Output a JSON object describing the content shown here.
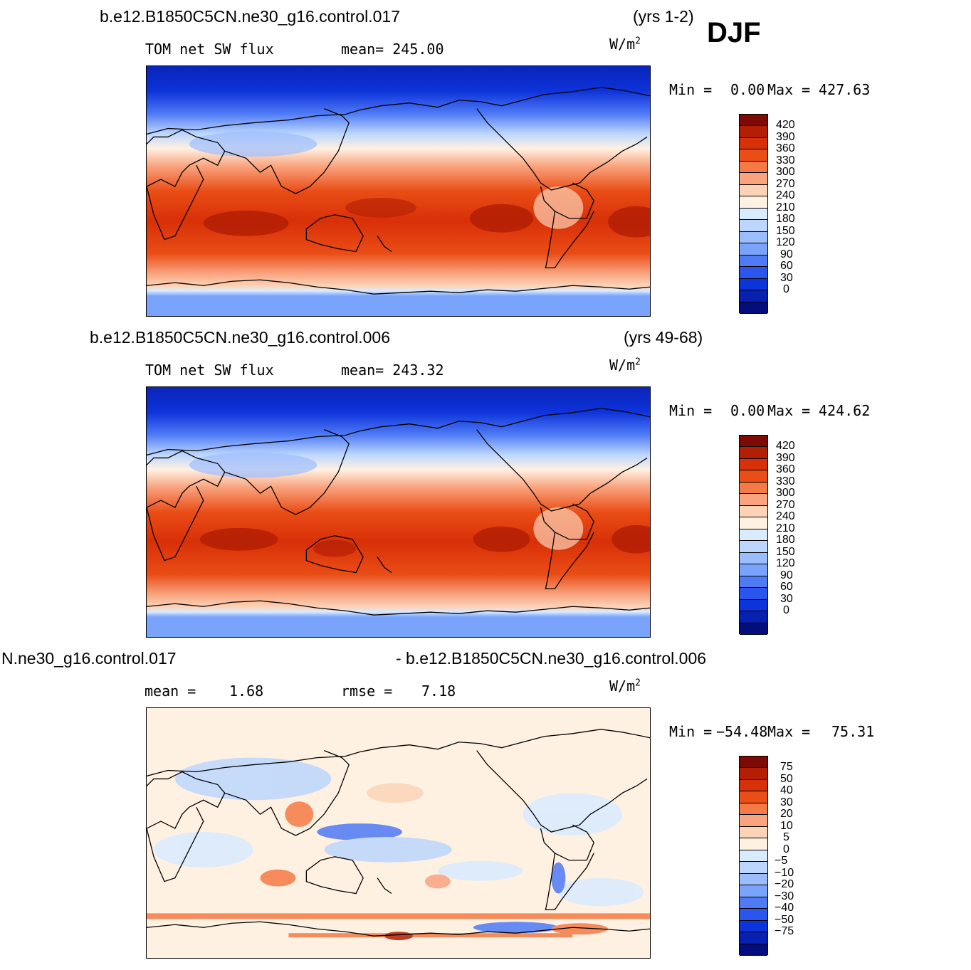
{
  "season": "DJF",
  "panels": [
    {
      "case_title": "b.e12.B1850C5CN.ne30_g16.control.017",
      "years": "(yrs 1-2)",
      "variable": "TOM  net  SW  flux",
      "stat": "mean=  245.00",
      "units": "W/m",
      "units_sup": "2",
      "minmax_min_label": "Min  =",
      "minmax_min": "0.00",
      "minmax_max_label": "Max  =",
      "minmax_max": "427.63",
      "levels": [
        "420",
        "390",
        "360",
        "330",
        "300",
        "270",
        "240",
        "210",
        "180",
        "150",
        "120",
        "90",
        "60",
        "30",
        "0"
      ],
      "colors": [
        "#7d0a04",
        "#b31e05",
        "#d83008",
        "#ea4d16",
        "#f57a45",
        "#f9a47f",
        "#fcd3b7",
        "#fff1e2",
        "#d9ebff",
        "#bcd6fe",
        "#9cbdfd",
        "#7aa3fc",
        "#4e7af6",
        "#2a55ee",
        "#0d33da",
        "#0820b0",
        "#030d7d"
      ],
      "map_type": "absolute"
    },
    {
      "case_title": "b.e12.B1850C5CN.ne30_g16.control.006",
      "years": "(yrs 49-68)",
      "variable": "TOM  net  SW  flux",
      "stat": "mean=  243.32",
      "units": "W/m",
      "units_sup": "2",
      "minmax_min_label": "Min  =",
      "minmax_min": "0.00",
      "minmax_max_label": "Max  =",
      "minmax_max": "424.62",
      "levels": [
        "420",
        "390",
        "360",
        "330",
        "300",
        "270",
        "240",
        "210",
        "180",
        "150",
        "120",
        "90",
        "60",
        "30",
        "0"
      ],
      "colors": [
        "#7d0a04",
        "#b31e05",
        "#d83008",
        "#ea4d16",
        "#f57a45",
        "#f9a47f",
        "#fcd3b7",
        "#fff1e2",
        "#d9ebff",
        "#bcd6fe",
        "#9cbdfd",
        "#7aa3fc",
        "#4e7af6",
        "#2a55ee",
        "#0d33da",
        "#0820b0",
        "#030d7d"
      ],
      "map_type": "absolute"
    },
    {
      "case_title": "N.ne30_g16.control.017",
      "case_title_right": "- b.e12.B1850C5CN.ne30_g16.control.006",
      "stat_mean_label": "mean  =",
      "stat_mean": "1.68",
      "stat_rmse_label": "rmse  =",
      "stat_rmse": "7.18",
      "units": "W/m",
      "units_sup": "2",
      "minmax_min_label": "Min  =",
      "minmax_min": "−54.48",
      "minmax_max_label": "Max  =",
      "minmax_max": "75.31",
      "levels": [
        "75",
        "50",
        "40",
        "30",
        "20",
        "10",
        "5",
        "0",
        "−5",
        "−10",
        "−20",
        "−30",
        "−40",
        "−50",
        "−75"
      ],
      "colors": [
        "#7d0a04",
        "#b31e05",
        "#d83008",
        "#ea4d16",
        "#f57a45",
        "#f9a47f",
        "#fcd3b7",
        "#fff1e2",
        "#d9ebff",
        "#bcd6fe",
        "#9cbdfd",
        "#7aa3fc",
        "#4e7af6",
        "#2a55ee",
        "#0d33da",
        "#0820b0",
        "#030d7d"
      ],
      "map_type": "difference"
    }
  ]
}
